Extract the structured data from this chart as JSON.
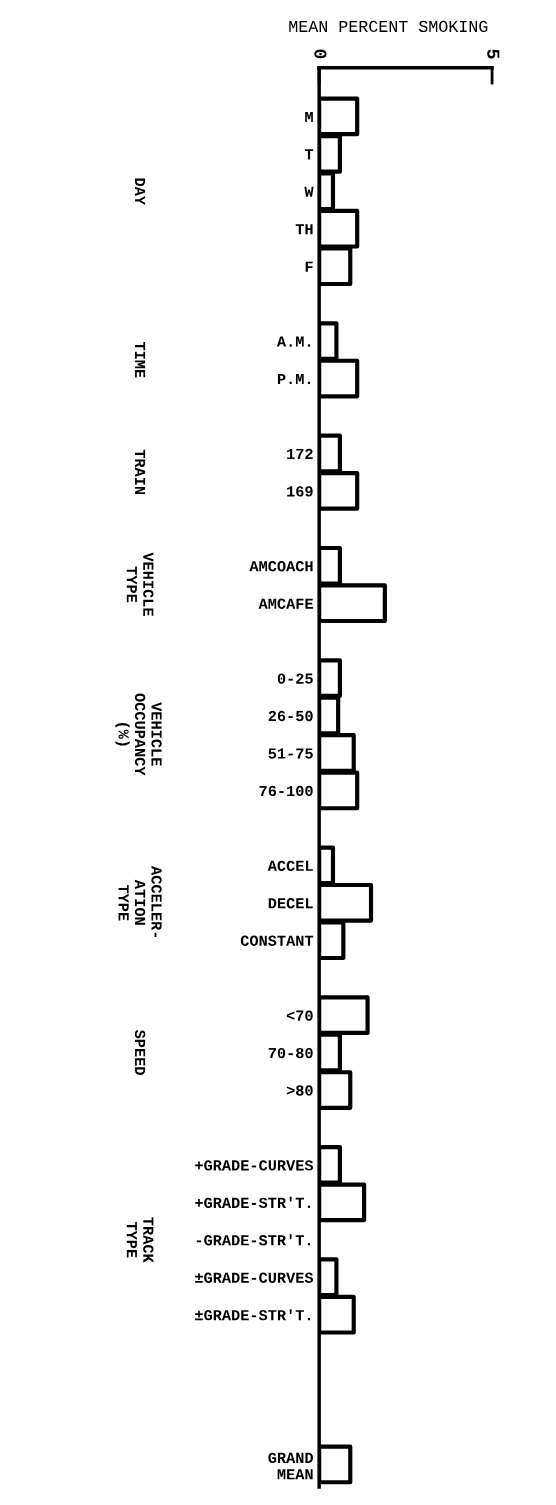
{
  "chart_data": {
    "type": "bar",
    "orientation": "horizontal",
    "xlabel": "MEAN PERCENT SMOKING",
    "categories": [
      "M",
      "T",
      "W",
      "TH",
      "F",
      null,
      "A.M.",
      "P.M.",
      null,
      "172",
      "169",
      null,
      "AMCOACH",
      "AMCAFE",
      null,
      "0-25",
      "26-50",
      "51-75",
      "76-100",
      null,
      "ACCEL",
      "DECEL",
      "CONSTANT",
      null,
      "<70",
      "70-80",
      ">80",
      null,
      "+GRADE-CURVES",
      "+GRADE-STR'T.",
      "-GRADE-STR'T.",
      "±GRADE-CURVES",
      "±GRADE-STR'T.",
      null,
      null,
      null,
      "GRAND\nMEAN"
    ],
    "values": [
      1.1,
      0.6,
      0.4,
      1.1,
      0.9,
      null,
      0.5,
      1.1,
      null,
      0.6,
      1.1,
      null,
      0.6,
      1.9,
      null,
      0.6,
      0.55,
      1.0,
      1.1,
      null,
      0.4,
      1.5,
      0.7,
      null,
      1.4,
      0.6,
      0.9,
      null,
      0.6,
      1.3,
      null,
      0.5,
      1.0,
      null,
      null,
      null,
      0.9
    ],
    "color": "#ffffff",
    "xlim": [
      0,
      5
    ],
    "xticks": [
      0,
      5
    ],
    "annotations": [
      "DAY",
      "TIME",
      "TRAIN",
      "VEHICLE\nTYPE",
      "VEHICLE\nOCCUPANCY\n(%)",
      "ACCELER-\nATION\nTYPE",
      "SPEED",
      "TRACK\nTYPE"
    ],
    "grid": false,
    "legend": false
  }
}
